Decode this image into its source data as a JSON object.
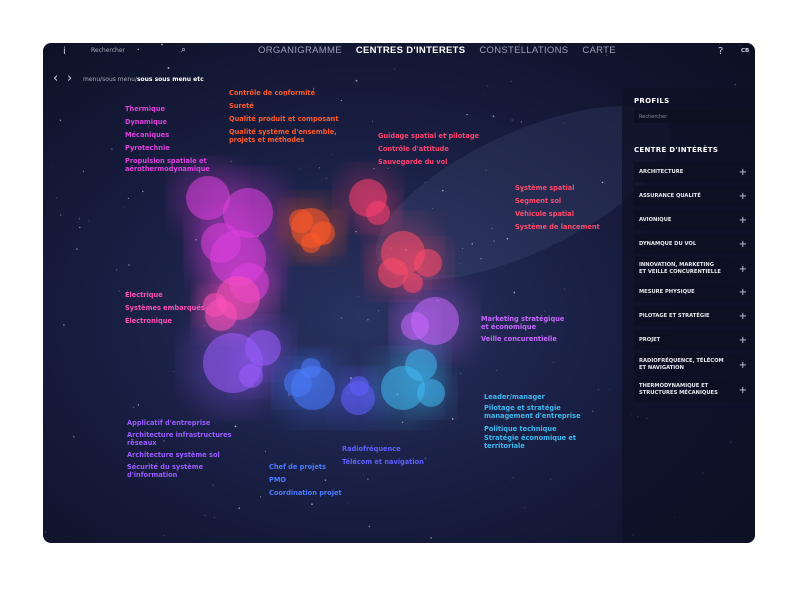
{
  "header": {
    "info_icon": "info-icon",
    "search_placeholder": "Rechercher",
    "search_icon": "search-icon",
    "tabs": [
      {
        "label": "ORGANIGRAMME",
        "active": false
      },
      {
        "label": "CENTRES D'INTERETS",
        "active": true
      },
      {
        "label": "CONSTELLATIONS",
        "active": false
      },
      {
        "label": "CARTE",
        "active": false
      }
    ],
    "help": "?",
    "user_initials": "CB"
  },
  "breadcrumb": {
    "parts": "menu/sous menu/",
    "current": "sous sous menu etc"
  },
  "groups": [
    {
      "color": "#e040e0",
      "labels": [
        "Thermique",
        "Dynamique",
        "Mécaniques",
        "Pyrotechnie",
        "Propulsion spatiale et\naérothermodynamique"
      ]
    },
    {
      "color": "#ff5a28",
      "labels": [
        "Contrôle de conformité",
        "Sureté",
        "Qualité produit et composant",
        "Qualité système d'ensemble,\nprojets et méthodes"
      ]
    },
    {
      "color": "#ff4070",
      "labels": [
        "Guidage spatial et pilotage",
        "Contrôle d'attitude",
        "Sauvegarde du vol"
      ]
    },
    {
      "color": "#ff4a6a",
      "labels": [
        "Système spatial",
        "Segment sol",
        "Véhicule spatial",
        "Système de lancement"
      ]
    },
    {
      "color": "#ff50b8",
      "labels": [
        "Électrique",
        "Systèmes embarqués",
        "Électronique"
      ]
    },
    {
      "color": "#c868ff",
      "labels": [
        "Marketing stratégique\net économique",
        "Veille concurentielle"
      ]
    },
    {
      "color": "#40b8f0",
      "labels": [
        "Leader/manager",
        "Pilotage et stratégie\nmanagement d'entreprise",
        "Politique technique",
        "Stratégie économique et\nterritoriale"
      ]
    },
    {
      "color": "#9a5cff",
      "labels": [
        "Applicatif d'entreprise",
        "Architecture infrastructures\nréseaux",
        "Architecture système sol",
        "Sécurité du système\nd'information"
      ]
    },
    {
      "color": "#4a7cff",
      "labels": [
        "Chef de projets",
        "PMO",
        "Coordination projet"
      ]
    },
    {
      "color": "#6060ff",
      "labels": [
        "Radiofréquence",
        "Télécom et navigation"
      ]
    }
  ],
  "sidebar": {
    "profiles_title": "PROFILS",
    "profiles_search_placeholder": "Rechercher",
    "interests_title": "CENTRE D'INTÉRÊTS",
    "items": [
      "ARCHITECTURE",
      "ASSURANCE QUALITÉ",
      "AVIONIQUE",
      "DYNAMQUE DU VOL",
      "INNOVATION, MARKETING\nET VEILLE CONCURENTIELLE",
      "MESURE PHYSIQUE",
      "PILOTAGE ET STRATÉGIE",
      "PROJET",
      "RADIOFRÉQUENCE, TÉLÉCOM\nET NAVIGATION",
      "THERMODYNAMIQUE ET\nSTRUCTURES MÉCANIQUES"
    ],
    "expand_icon": "plus-icon"
  }
}
